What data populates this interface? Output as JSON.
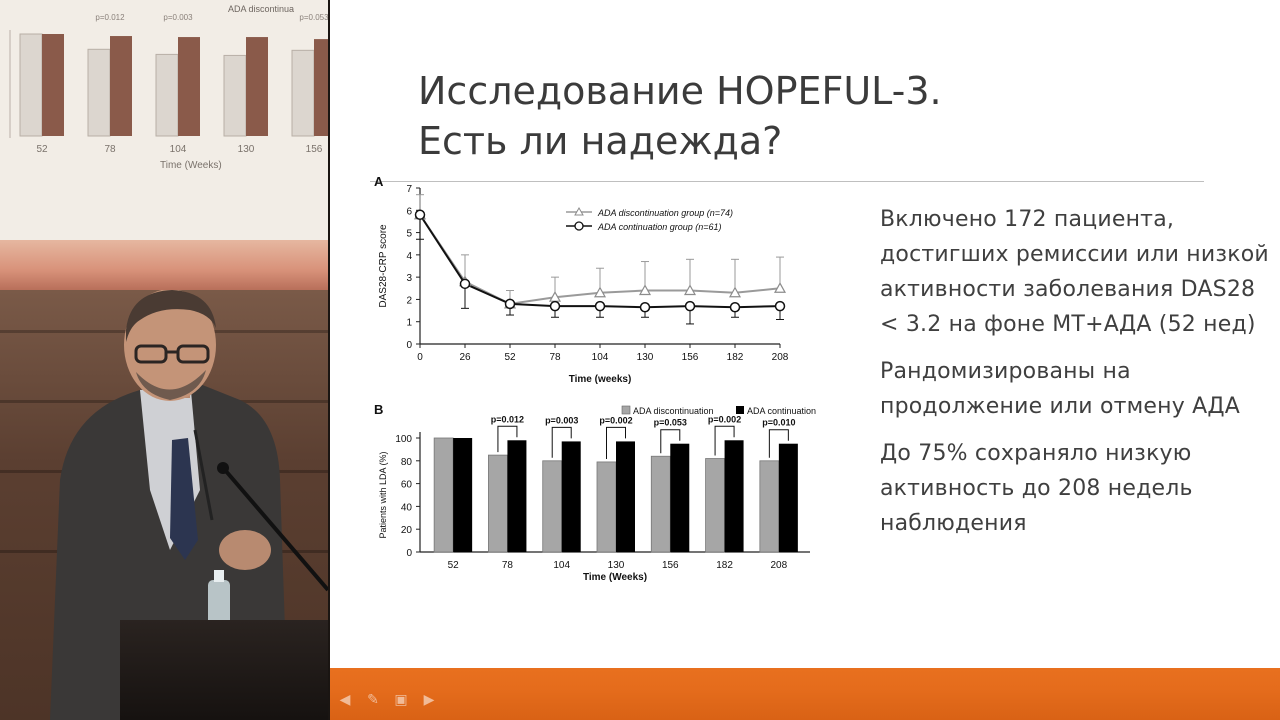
{
  "slide": {
    "title_line1": "Исследование HOPEFUL-3.",
    "title_line2": "Есть ли надежда?",
    "bullets": [
      "Включено 172 пациента, достигших ремиссии или низкой активности заболевания DAS28 < 3.2 на фоне МТ+АДА (52 нед)",
      "Рандомизированы на продолжение или отмену АДА",
      "До 75% сохраняло низкую активность до 208 недель наблюдения"
    ]
  },
  "projected_screen": {
    "legend": "ADA discontinua",
    "pvalues": [
      "p=0.012",
      "p=0.003",
      "p=0.053"
    ],
    "ticks": [
      "52",
      "78",
      "104",
      "130",
      "156"
    ],
    "xlabel": "Time (Weeks)"
  },
  "colors": {
    "orange_band": "#e56c1c",
    "slide_bg": "#ffffff",
    "title": "#3b3b3b",
    "discontinuation_bar": "#a6a6a6",
    "continuation_bar": "#000000"
  },
  "controls": [
    "back-icon",
    "pen-icon",
    "slides-icon",
    "forward-icon"
  ],
  "chart_data": [
    {
      "type": "line",
      "panel_label": "A",
      "xlabel": "Time (weeks)",
      "ylabel": "DAS28-CRP score",
      "x": [
        0,
        26,
        52,
        78,
        104,
        130,
        156,
        182,
        208
      ],
      "ylim": [
        0,
        7
      ],
      "yticks": [
        0,
        1,
        2,
        3,
        4,
        5,
        6,
        7
      ],
      "legend_placement": "top-right",
      "series": [
        {
          "name": "ADA discontinuation group (n=74)",
          "marker": "triangle",
          "values": [
            5.8,
            2.8,
            1.8,
            2.1,
            2.3,
            2.4,
            2.4,
            2.3,
            2.5
          ],
          "err_upper": [
            6.7,
            4.0,
            2.4,
            3.0,
            3.4,
            3.7,
            3.8,
            3.8,
            3.9
          ]
        },
        {
          "name": "ADA continuation group (n=61)",
          "marker": "circle",
          "values": [
            5.8,
            2.7,
            1.8,
            1.7,
            1.7,
            1.65,
            1.7,
            1.65,
            1.7
          ],
          "err_lower": [
            4.7,
            1.6,
            1.3,
            1.2,
            1.2,
            1.2,
            0.9,
            1.2,
            1.1
          ]
        }
      ]
    },
    {
      "type": "bar",
      "panel_label": "B",
      "xlabel": "Time (Weeks)",
      "ylabel": "Patients with LDA (%)",
      "categories": [
        "52",
        "78",
        "104",
        "130",
        "156",
        "182",
        "208"
      ],
      "ylim": [
        0,
        100
      ],
      "yticks": [
        0,
        20,
        40,
        60,
        80,
        100
      ],
      "legend_placement": "top",
      "series": [
        {
          "name": "ADA discontinuation",
          "values": [
            100,
            85,
            80,
            79,
            84,
            82,
            80
          ]
        },
        {
          "name": "ADA continuation",
          "values": [
            100,
            98,
            97,
            97,
            95,
            98,
            95
          ]
        }
      ],
      "annotations": [
        "",
        "p=0.012",
        "p=0.003",
        "p=0.002",
        "p=0.053",
        "p=0.002",
        "p=0.010"
      ]
    }
  ]
}
